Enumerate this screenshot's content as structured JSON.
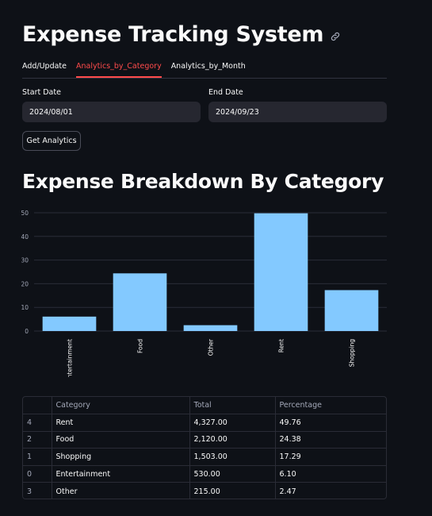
{
  "title": "Expense Tracking System",
  "tabs": [
    {
      "label": "Add/Update"
    },
    {
      "label": "Analytics_by_Category"
    },
    {
      "label": "Analytics_by_Month"
    }
  ],
  "active_tab": 1,
  "form": {
    "start_label": "Start Date",
    "start_value": "2024/08/01",
    "end_label": "End Date",
    "end_value": "2024/09/23",
    "button_label": "Get Analytics"
  },
  "section_title": "Expense Breakdown By Category",
  "colors": {
    "bar": "#83c9ff",
    "accent": "#ff4b4b"
  },
  "chart_data": {
    "type": "bar",
    "categories": [
      "Entertainment",
      "Food",
      "Other",
      "Rent",
      "Shopping"
    ],
    "values": [
      6.1,
      24.38,
      2.47,
      49.76,
      17.29
    ],
    "title": "",
    "xlabel": "",
    "ylabel": "",
    "ylim": [
      0,
      52
    ],
    "yticks": [
      0,
      10,
      20,
      30,
      40,
      50
    ],
    "grid": true
  },
  "table": {
    "columns": [
      "",
      "Category",
      "Total",
      "Percentage"
    ],
    "rows": [
      [
        "4",
        "Rent",
        "4,327.00",
        "49.76"
      ],
      [
        "2",
        "Food",
        "2,120.00",
        "24.38"
      ],
      [
        "1",
        "Shopping",
        "1,503.00",
        "17.29"
      ],
      [
        "0",
        "Entertainment",
        "530.00",
        "6.10"
      ],
      [
        "3",
        "Other",
        "215.00",
        "2.47"
      ]
    ]
  }
}
